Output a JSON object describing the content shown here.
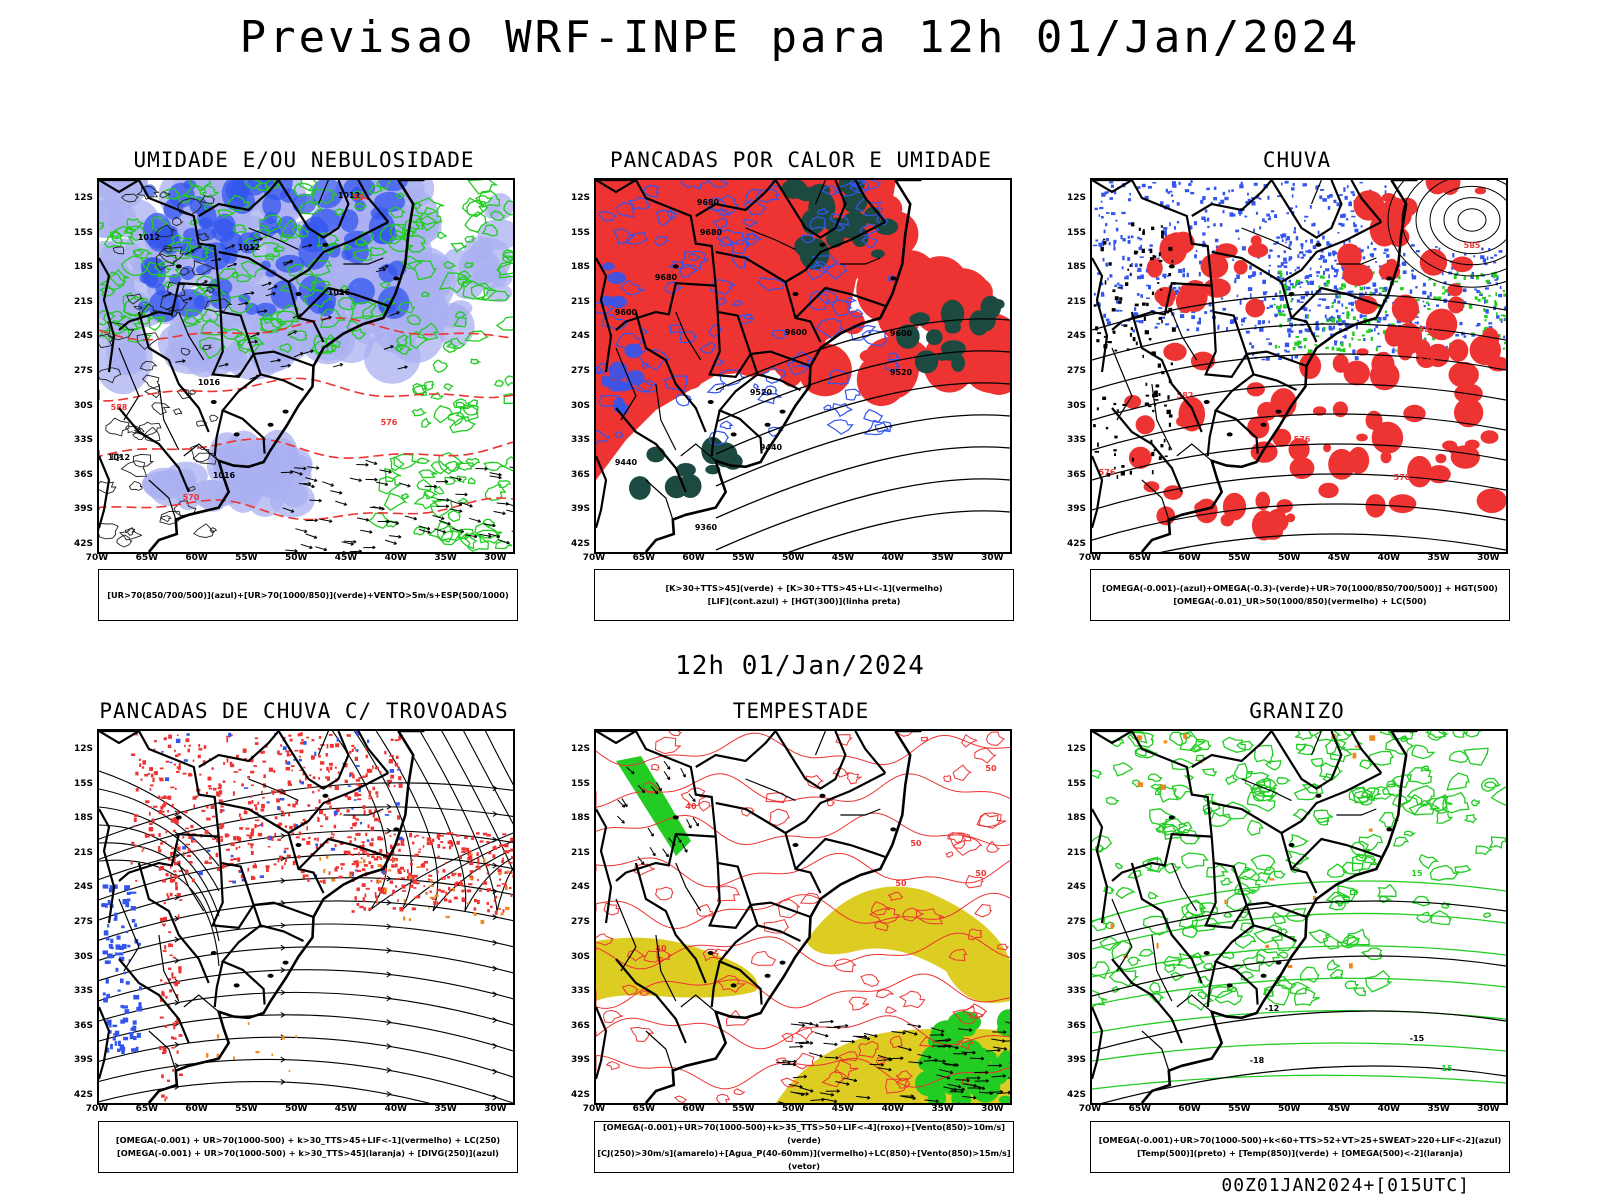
{
  "title": "Previsao WRF-INPE  para 12h 01/Jan/2024",
  "mid_title": "12h 01/Jan/2024",
  "footer": "00Z01JAN2024+[015UTC]",
  "lat_labels": [
    "12S",
    "15S",
    "18S",
    "21S",
    "24S",
    "27S",
    "30S",
    "33S",
    "36S",
    "39S",
    "42S"
  ],
  "lon_labels": [
    "70W",
    "65W",
    "60W",
    "55W",
    "50W",
    "45W",
    "40W",
    "35W",
    "30W"
  ],
  "colors": {
    "blue": "#3355ee",
    "light_blue": "#aab0f0",
    "green": "#22cc22",
    "red": "#ee3333",
    "yellow": "#ddcc22",
    "orange": "#ee8822",
    "dark_teal": "#1d4a40"
  },
  "panels": [
    {
      "id": "umidade",
      "title": "UMIDADE E/OU NEBULOSIDADE",
      "legend": [
        "[UR>70(850/700/500)](azul)+[UR>70(1000/850)](verde)+VENTO>5m/s+ESP(500/1000)"
      ],
      "contour_labels": [
        "1012",
        "1012",
        "1012",
        "1016",
        "1016",
        "1016",
        "1012",
        "584",
        "576",
        "570",
        "588"
      ]
    },
    {
      "id": "pancadas_calor",
      "title": "PANCADAS POR CALOR E UMIDADE",
      "legend": [
        "[K>30+TTS>45](verde) + [K>30+TTS>45+LI<-1](vermelho)",
        "[LIF](cont.azul) + [HGT(300)](linha preta)"
      ],
      "contour_labels": [
        "9680",
        "9680",
        "9680",
        "9600",
        "9600",
        "9600",
        "9520",
        "9520",
        "9440",
        "9440",
        "9360"
      ]
    },
    {
      "id": "chuva",
      "title": "CHUVA",
      "legend": [
        "[OMEGA(-0.001)-(azul)+OMEGA(-0.3)-(verde)+UR>70(1000/850/700/500)] + HGT(500)",
        "[OMEGA(-0.01)_UR>50(1000/850)(vermelho) + LC(500)"
      ],
      "contour_labels": [
        "585",
        "582",
        "579",
        "576",
        "573",
        "570",
        "576",
        "582"
      ]
    },
    {
      "id": "trovoadas",
      "title": "PANCADAS DE CHUVA C/ TROVOADAS",
      "legend": [
        "[OMEGA(-0.001) + UR>70(1000-500) + k>30_TTS>45+LIF<-1](vermelho) + LC(250)",
        "[OMEGA(-0.001) + UR>70(1000-500) + k>30_TTS>45](laranja) + [DIVG(250)](azul)"
      ],
      "contour_labels": []
    },
    {
      "id": "tempestade",
      "title": "TEMPESTADE",
      "legend": [
        "[OMEGA(-0.001)+UR>70(1000-500)+k>35_TTS>50+LIF<-4](roxo)+[Vento(850)>10m/s](verde)",
        "[CJ(250)>30m/s](amarelo)+[Agua_P(40-60mm)](vermelho)+LC(850)+[Vento(850)>15m/s](vetor)"
      ],
      "contour_labels": [
        "40",
        "50",
        "50",
        "50",
        "40",
        "50"
      ]
    },
    {
      "id": "granizo",
      "title": "GRANIZO",
      "legend": [
        "[OMEGA(-0.001)+UR>70(1000-500)+k<60+TTS>52+VT>25+SWEAT>220+LIF<-2](azul)",
        "[Temp(500)](preto) + [Temp(850)](verde) + [OMEGA(500)<-2](laranja)"
      ],
      "contour_labels": [
        "-12",
        "-15",
        "-18",
        "15",
        "15"
      ]
    }
  ]
}
